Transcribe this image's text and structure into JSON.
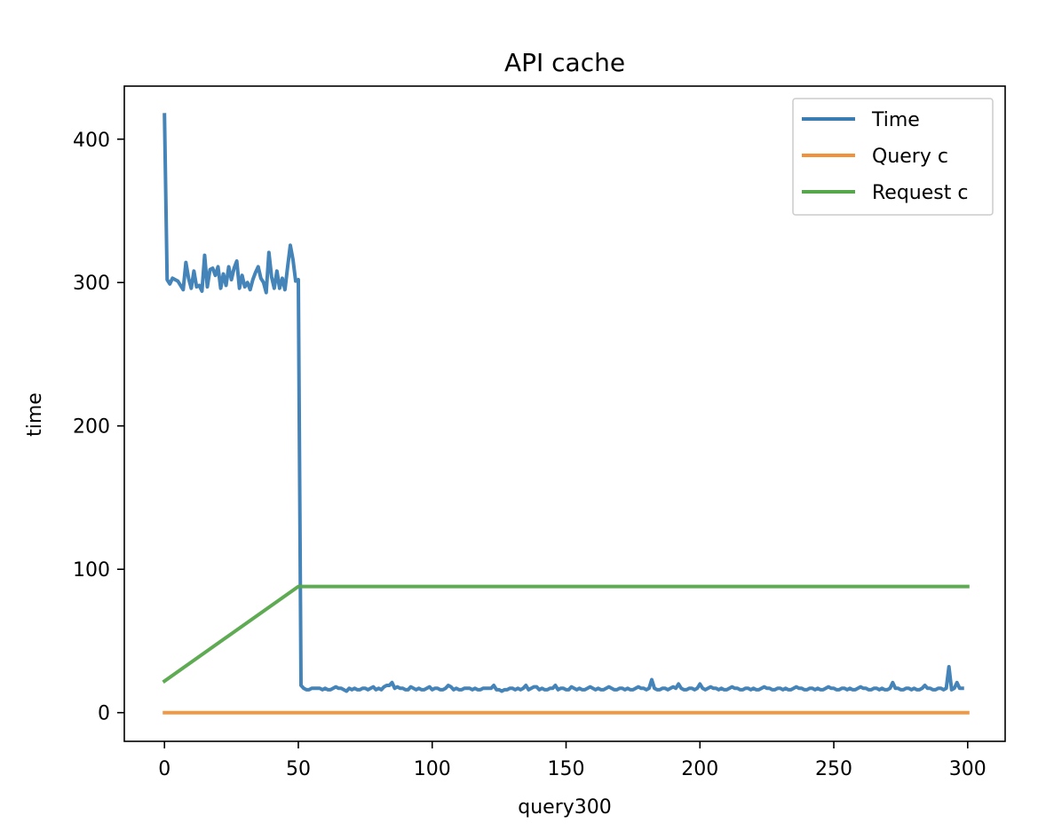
{
  "chart_data": {
    "type": "line",
    "title": "API cache",
    "xlabel": "query300",
    "ylabel": "time",
    "xlim": [
      -15,
      314
    ],
    "ylim": [
      -20,
      437
    ],
    "xticks": [
      0,
      50,
      100,
      150,
      200,
      250,
      300
    ],
    "yticks": [
      0,
      100,
      200,
      300,
      400
    ],
    "grid": false,
    "legend": {
      "position": "top-right",
      "entries": [
        "Time",
        "Query c",
        "Request c"
      ]
    },
    "series": [
      {
        "name": "Time",
        "color": "#3a7db5",
        "x_start": 0,
        "x_step": 1,
        "values": [
          417,
          302,
          299,
          303,
          302,
          301,
          298,
          295,
          314,
          303,
          296,
          308,
          297,
          298,
          294,
          319,
          297,
          309,
          310,
          305,
          311,
          296,
          306,
          298,
          311,
          302,
          310,
          315,
          296,
          305,
          297,
          300,
          295,
          302,
          307,
          311,
          303,
          300,
          293,
          321,
          304,
          296,
          308,
          296,
          303,
          295,
          311,
          326,
          316,
          301,
          302,
          19,
          17,
          16,
          16,
          17,
          17,
          17,
          17,
          16,
          17,
          16,
          16,
          17,
          18,
          17,
          17,
          16,
          15,
          17,
          16,
          17,
          16,
          16,
          17,
          17,
          16,
          17,
          18,
          16,
          17,
          16,
          18,
          19,
          19,
          21,
          17,
          18,
          17,
          17,
          16,
          16,
          18,
          17,
          16,
          17,
          16,
          16,
          17,
          18,
          16,
          17,
          17,
          16,
          16,
          17,
          19,
          18,
          16,
          17,
          16,
          16,
          17,
          17,
          17,
          16,
          17,
          16,
          16,
          17,
          17,
          17,
          17,
          19,
          16,
          16,
          15,
          16,
          16,
          17,
          17,
          16,
          17,
          16,
          17,
          19,
          16,
          17,
          18,
          18,
          16,
          17,
          16,
          16,
          17,
          17,
          19,
          16,
          17,
          17,
          16,
          16,
          18,
          17,
          16,
          17,
          16,
          16,
          17,
          18,
          17,
          16,
          17,
          16,
          16,
          17,
          18,
          17,
          16,
          16,
          17,
          17,
          16,
          17,
          16,
          16,
          17,
          18,
          17,
          17,
          16,
          17,
          23,
          17,
          16,
          16,
          17,
          17,
          16,
          17,
          18,
          17,
          20,
          17,
          16,
          16,
          17,
          17,
          16,
          17,
          20,
          17,
          16,
          17,
          18,
          17,
          17,
          16,
          17,
          16,
          16,
          17,
          18,
          17,
          17,
          16,
          16,
          17,
          17,
          16,
          17,
          16,
          16,
          17,
          18,
          17,
          17,
          16,
          16,
          17,
          17,
          16,
          17,
          16,
          16,
          17,
          18,
          17,
          17,
          16,
          16,
          17,
          17,
          16,
          17,
          16,
          16,
          17,
          18,
          17,
          17,
          16,
          16,
          17,
          17,
          16,
          17,
          16,
          16,
          17,
          18,
          17,
          17,
          16,
          16,
          17,
          17,
          16,
          17,
          16,
          16,
          17,
          21,
          17,
          17,
          16,
          16,
          17,
          17,
          16,
          17,
          16,
          16,
          17,
          19,
          17,
          17,
          16,
          16,
          17,
          17,
          16,
          17,
          32,
          16,
          17,
          21,
          17,
          17
        ]
      },
      {
        "name": "Query c",
        "color": "#f0923b",
        "points": [
          [
            0,
            0
          ],
          [
            300,
            0
          ]
        ]
      },
      {
        "name": "Request c",
        "color": "#56a64b",
        "points": [
          [
            0,
            22
          ],
          [
            50,
            88
          ],
          [
            300,
            88
          ]
        ]
      }
    ]
  }
}
